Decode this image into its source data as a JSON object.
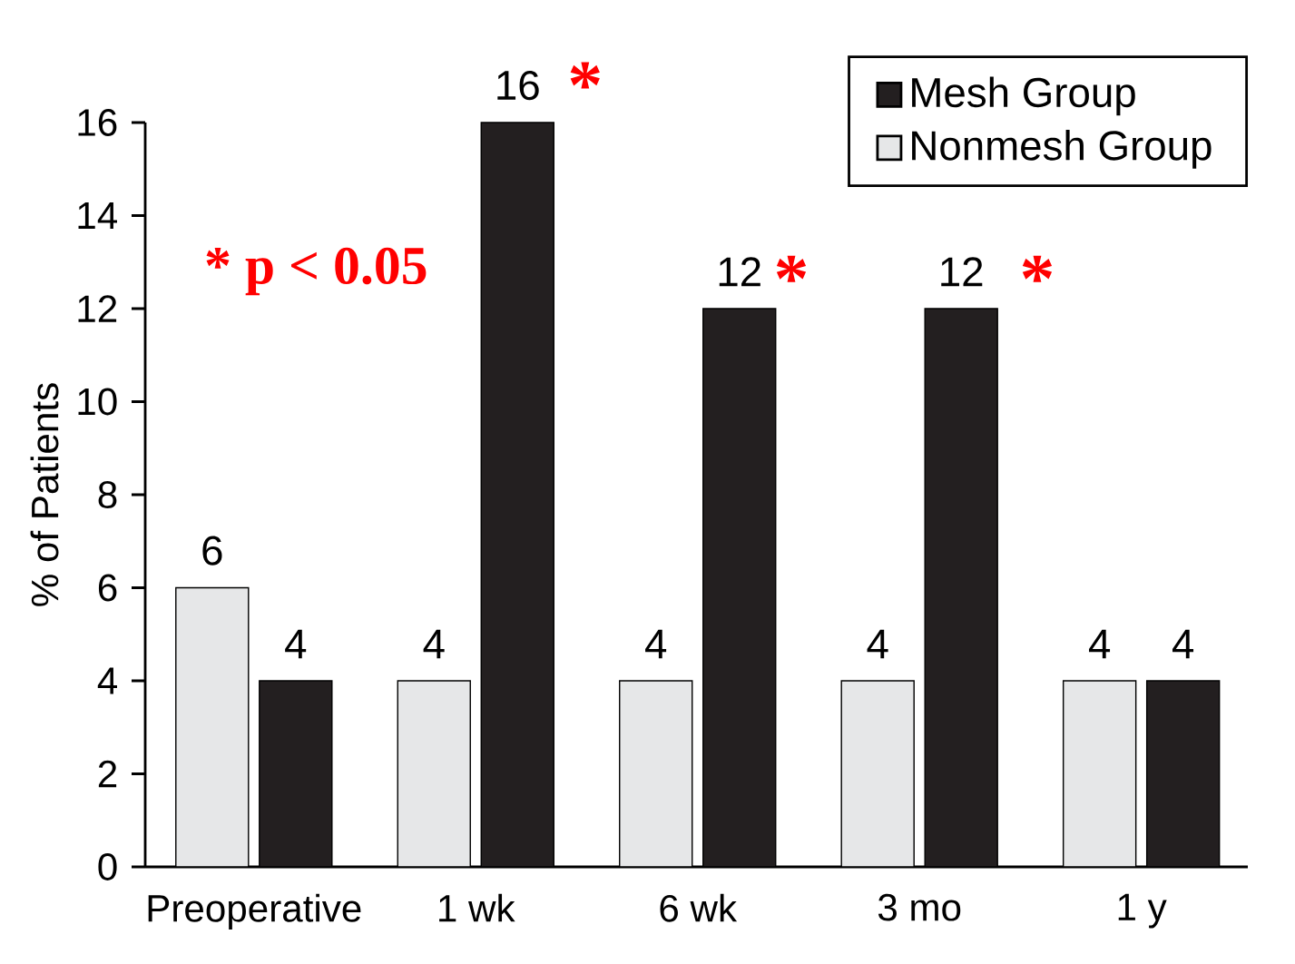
{
  "chart_data": {
    "type": "bar",
    "ylabel": "% of Patients",
    "categories": [
      "Preoperative",
      "1 wk",
      "6 wk",
      "3 mo",
      "1 y"
    ],
    "series": [
      {
        "name": "Nonmesh Group",
        "color": "#e6e7e8",
        "values": [
          6,
          4,
          4,
          4,
          4
        ]
      },
      {
        "name": "Mesh Group",
        "color": "#231f20",
        "values": [
          4,
          16,
          12,
          12,
          4
        ]
      }
    ],
    "ylim": [
      0,
      16
    ],
    "yticks": [
      0,
      2,
      4,
      6,
      8,
      10,
      12,
      14,
      16
    ],
    "data_labels": true,
    "grid": false,
    "legend": "top right",
    "annotations": [
      "* p < 0.05",
      "*",
      "*",
      "*"
    ]
  }
}
